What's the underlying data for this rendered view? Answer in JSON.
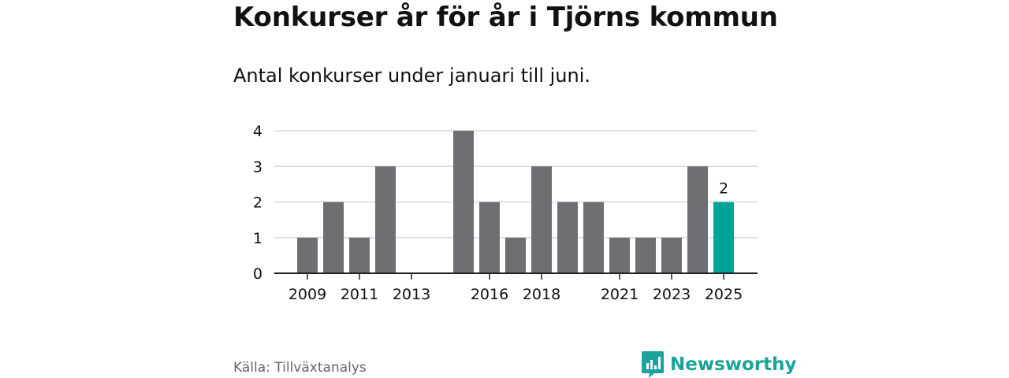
{
  "header": {
    "title": "Konkurser år för år i Tjörns kommun",
    "subtitle": "Antal konkurser under januari till juni."
  },
  "footer": {
    "source": "Källa: Tillväxtanalys",
    "brand": "Newsworthy"
  },
  "colors": {
    "bar": "#6f6e73",
    "highlight": "#00a398",
    "brand": "#1aa39a",
    "grid": "#d9d9d9",
    "axis": "#222222"
  },
  "icons": {
    "brand_logo": "bar-chart-speech-bubble-icon"
  },
  "chart_data": {
    "type": "bar",
    "categories": [
      "2009",
      "2010",
      "2011",
      "2012",
      "2013",
      "2014",
      "2015",
      "2016",
      "2017",
      "2018",
      "2019",
      "2020",
      "2021",
      "2022",
      "2023",
      "2024",
      "2025"
    ],
    "values": [
      1,
      2,
      1,
      3,
      0,
      0,
      4,
      2,
      1,
      3,
      2,
      2,
      1,
      1,
      1,
      3,
      2
    ],
    "highlight_category": "2025",
    "highlight_value_label": "2",
    "x_tick_labels": [
      "2009",
      "2011",
      "2013",
      "2016",
      "2018",
      "2021",
      "2023",
      "2025"
    ],
    "y_ticks": [
      0,
      1,
      2,
      3,
      4
    ],
    "ylim": [
      0,
      4
    ],
    "grid": true,
    "title": "Konkurser år för år i Tjörns kommun",
    "subtitle": "Antal konkurser under januari till juni."
  }
}
